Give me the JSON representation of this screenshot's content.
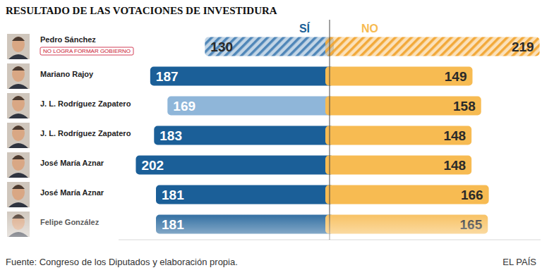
{
  "chart_data": {
    "type": "bar",
    "orientation": "horizontal",
    "title": "RESULTADO DE LAS VOTACIONES DE INVESTIDURA",
    "categories": [
      "Pedro Sánchez",
      "Mariano Rajoy",
      "J. L. Rodríguez Zapatero",
      "J. L. Rodríguez Zapatero",
      "José María Aznar",
      "José María Aznar",
      "Felipe González"
    ],
    "series": [
      {
        "name": "SÍ",
        "color": "#1b5f98",
        "colors": [
          "#4f86b8",
          "#1b5f98",
          "#8fb6d9",
          "#1b5f98",
          "#1b5f98",
          "#1b5f98",
          "#1b5f98"
        ],
        "values": [
          130,
          187,
          169,
          183,
          202,
          181,
          181
        ]
      },
      {
        "name": "NO",
        "color": "#f7bb52",
        "colors": [
          "#f2a93a",
          "#f7bb52",
          "#f7bb52",
          "#f7bb52",
          "#f7bb52",
          "#f7bb52",
          "#f7bb52"
        ],
        "values": [
          219,
          149,
          158,
          148,
          148,
          166,
          165
        ]
      }
    ],
    "xlim": [
      0,
      220
    ],
    "xticks": [
      0
    ],
    "tick_labels": false,
    "data_labels": true,
    "annotations": [
      {
        "category": "Pedro Sánchez",
        "text": "NO LOGRA FORMAR GOBIERNO"
      }
    ],
    "source": "Fuente: Congreso de los Diputados y elaboración propia.",
    "credit": "EL PAÍS"
  }
}
